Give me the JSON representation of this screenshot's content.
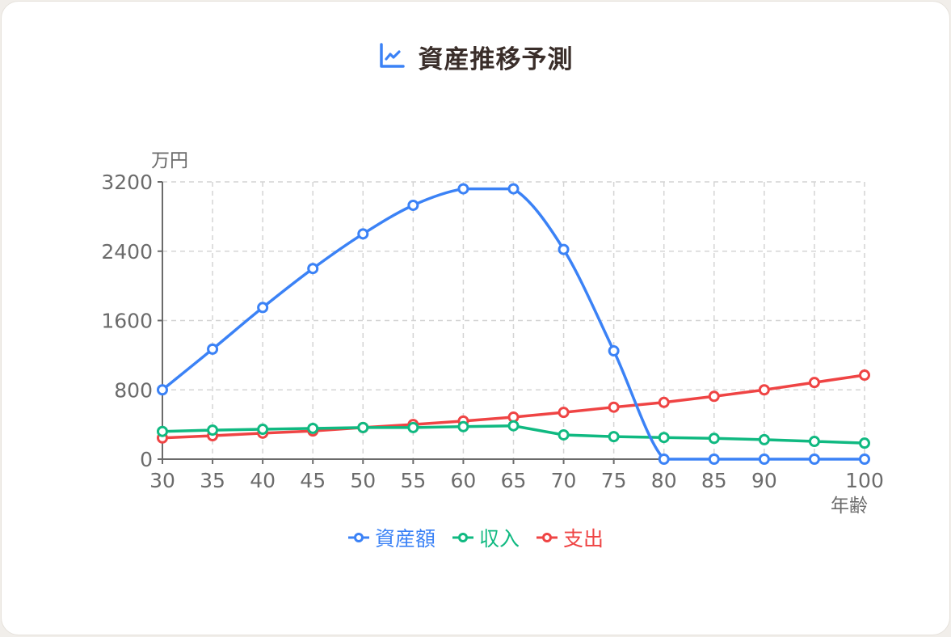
{
  "header": {
    "title": "資産推移予測",
    "icon": "line-chart-icon"
  },
  "chart_data": {
    "type": "line",
    "title": "資産推移予測",
    "xlabel": "年齢",
    "ylabel": "万円",
    "x": [
      30,
      35,
      40,
      45,
      50,
      55,
      60,
      65,
      70,
      75,
      80,
      85,
      90,
      95,
      100
    ],
    "x_tick_labels": [
      "30",
      "35",
      "40",
      "45",
      "50",
      "55",
      "60",
      "65",
      "70",
      "75",
      "80",
      "85",
      "90",
      "",
      "100"
    ],
    "ylim": [
      0,
      3200
    ],
    "y_ticks": [
      0,
      800,
      1600,
      2400,
      3200
    ],
    "grid": true,
    "legend_position": "bottom",
    "series": [
      {
        "name": "資産額",
        "color": "#3b82f6",
        "smooth": true,
        "values": [
          800,
          1270,
          1750,
          2200,
          2600,
          2930,
          3120,
          3120,
          2420,
          1250,
          0,
          0,
          0,
          0,
          0
        ]
      },
      {
        "name": "収入",
        "color": "#10b981",
        "smooth": false,
        "values": [
          320,
          335,
          345,
          355,
          365,
          365,
          375,
          385,
          280,
          260,
          250,
          240,
          225,
          205,
          185
        ]
      },
      {
        "name": "支出",
        "color": "#ef4444",
        "smooth": false,
        "values": [
          245,
          270,
          300,
          325,
          365,
          400,
          440,
          485,
          540,
          600,
          655,
          725,
          800,
          885,
          970
        ]
      }
    ]
  },
  "legend": [
    {
      "label": "資産額",
      "color": "#3b82f6"
    },
    {
      "label": "収入",
      "color": "#10b981"
    },
    {
      "label": "支出",
      "color": "#ef4444"
    }
  ]
}
